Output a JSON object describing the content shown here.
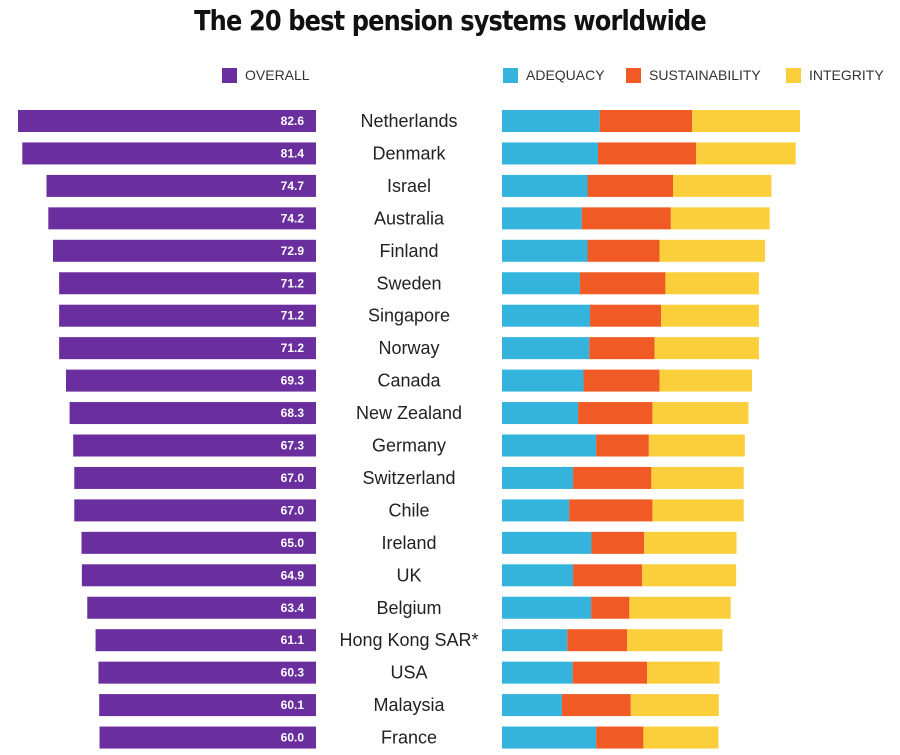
{
  "title": "The 20 best pension systems worldwide",
  "colors": {
    "overall": "#6a2e9e",
    "adequacy": "#34b3dd",
    "sustainability": "#f05a24",
    "integrity": "#fbcf3b"
  },
  "legend": {
    "overall": "OVERALL",
    "adequacy": "ADEQUACY",
    "sustainability": "SUSTAINABILITY",
    "integrity": "INTEGRITY"
  },
  "chart_data": {
    "type": "bar",
    "title": "The 20 best pension systems worldwide",
    "categories": [
      "Netherlands",
      "Denmark",
      "Israel",
      "Australia",
      "Finland",
      "Sweden",
      "Singapore",
      "Norway",
      "Canada",
      "New Zealand",
      "Germany",
      "Switzerland",
      "Chile",
      "Ireland",
      "UK",
      "Belgium",
      "Hong Kong SAR*",
      "USA",
      "Malaysia",
      "France"
    ],
    "overall": {
      "name": "OVERALL",
      "values": [
        82.6,
        81.4,
        74.7,
        74.2,
        72.9,
        71.2,
        71.2,
        71.2,
        69.3,
        68.3,
        67.3,
        67.0,
        67.0,
        65.0,
        64.9,
        63.4,
        61.1,
        60.3,
        60.1,
        60.0
      ],
      "labels": [
        "82.6",
        "81.4",
        "74.7",
        "74.2",
        "72.9",
        "71.2",
        "71.2",
        "71.2",
        "69.3",
        "68.3",
        "67.3",
        "67.0",
        "67.0",
        "65.0",
        "64.9",
        "63.4",
        "61.1",
        "60.3",
        "60.1",
        "60.0"
      ]
    },
    "stacked_series": [
      {
        "name": "ADEQUACY",
        "values": [
          27.1,
          26.6,
          23.7,
          22.1,
          23.7,
          21.6,
          24.4,
          24.2,
          22.6,
          21.1,
          26.1,
          19.7,
          18.6,
          24.8,
          19.7,
          24.7,
          18.1,
          19.6,
          16.6,
          26.1
        ]
      },
      {
        "name": "SUSTAINABILITY",
        "values": [
          25.6,
          27.2,
          23.7,
          24.7,
          20.0,
          23.7,
          19.7,
          18.1,
          21.1,
          20.6,
          14.6,
          21.7,
          23.1,
          14.6,
          19.1,
          10.6,
          16.6,
          20.6,
          19.1,
          13.1
        ]
      },
      {
        "name": "INTEGRITY",
        "values": [
          29.9,
          27.6,
          27.3,
          27.4,
          29.2,
          25.9,
          27.1,
          28.9,
          25.6,
          26.6,
          26.6,
          25.6,
          25.3,
          25.6,
          26.1,
          28.1,
          26.4,
          20.1,
          24.4,
          20.8
        ]
      }
    ],
    "xlim": [
      0,
      82.6
    ]
  }
}
